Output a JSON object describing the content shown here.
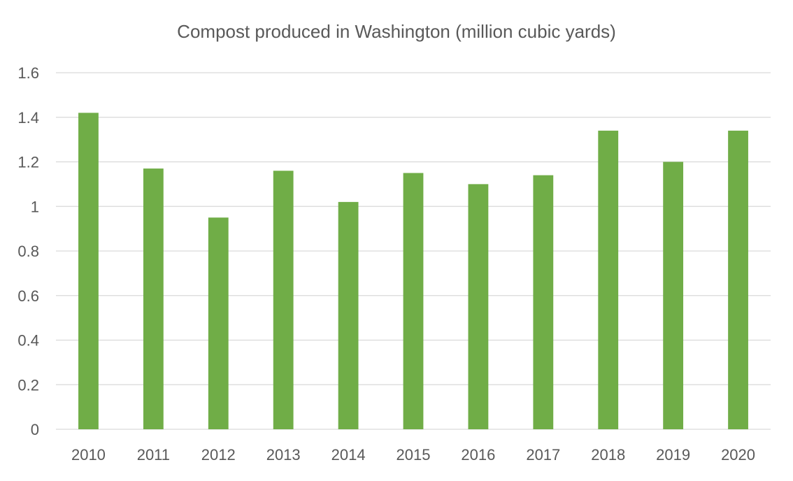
{
  "chart_data": {
    "type": "bar",
    "title": "Compost produced in Washington (million cubic yards)",
    "xlabel": "",
    "ylabel": "",
    "categories": [
      "2010",
      "2011",
      "2012",
      "2013",
      "2014",
      "2015",
      "2016",
      "2017",
      "2018",
      "2019",
      "2020"
    ],
    "series": [
      {
        "values": [
          1.42,
          1.17,
          0.95,
          1.16,
          1.02,
          1.15,
          1.1,
          1.14,
          1.34,
          1.2,
          1.34
        ]
      }
    ],
    "ylim": [
      0,
      1.6
    ],
    "yticks": [
      "0",
      "0.2",
      "0.4",
      "0.6",
      "0.8",
      "1",
      "1.2",
      "1.4",
      "1.6"
    ],
    "grid": true,
    "legend": "none",
    "bar_color": "#70ad47",
    "grid_color": "#d9d9d9",
    "text_color": "#595959"
  }
}
